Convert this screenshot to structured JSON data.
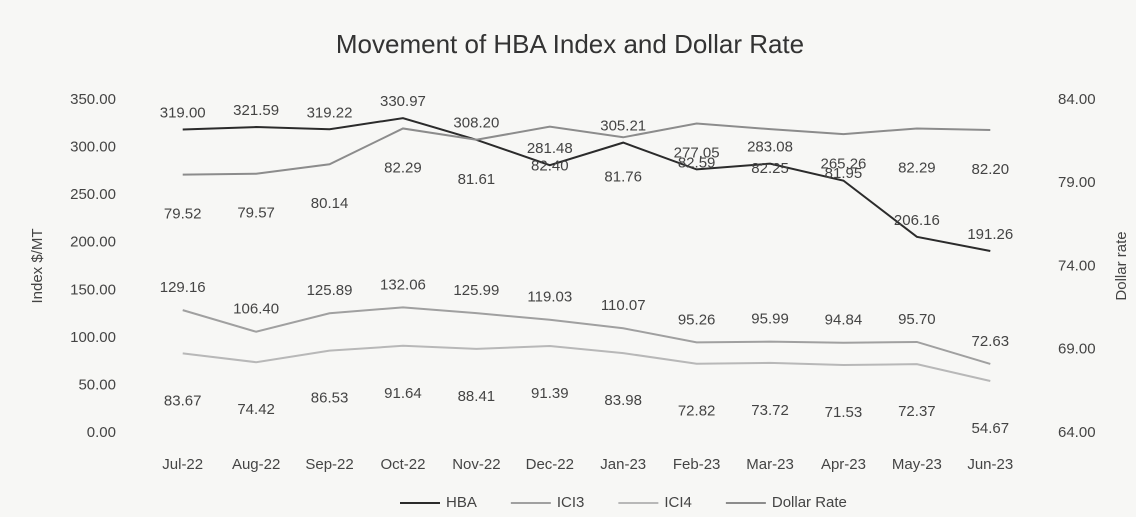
{
  "chart_data": {
    "type": "line",
    "title": "Movement of HBA Index and Dollar Rate",
    "y_label": "Index $/MT",
    "y2_label": "Dollar rate",
    "categories": [
      "Jul-22",
      "Aug-22",
      "Sep-22",
      "Oct-22",
      "Nov-22",
      "Dec-22",
      "Jan-23",
      "Feb-23",
      "Mar-23",
      "Apr-23",
      "May-23",
      "Jun-23"
    ],
    "series": [
      {
        "name": "HBA",
        "color": "#2b2b2b",
        "values": [
          319.0,
          321.59,
          319.22,
          330.97,
          308.2,
          281.48,
          305.21,
          277.05,
          283.08,
          265.26,
          206.16,
          191.26
        ],
        "value_labels": [
          "319.00",
          "321.59",
          "319.22",
          "330.97",
          "308.20",
          "281.48",
          "305.21",
          "277.05",
          "283.08",
          "265.26",
          "206.16",
          "191.26"
        ]
      },
      {
        "name": "ICI3",
        "color": "#a0a0a0",
        "values": [
          129.16,
          106.4,
          125.89,
          132.06,
          125.99,
          119.03,
          110.07,
          95.26,
          95.99,
          94.84,
          95.7,
          72.63
        ],
        "value_labels": [
          "129.16",
          "106.40",
          "125.89",
          "132.06",
          "125.99",
          "119.03",
          "110.07",
          "95.26",
          "95.99",
          "94.84",
          "95.70",
          "72.63"
        ]
      },
      {
        "name": "ICI4",
        "color": "#b8b8b8",
        "values": [
          83.67,
          74.42,
          86.53,
          91.64,
          88.41,
          91.39,
          83.98,
          72.82,
          73.72,
          71.53,
          72.37,
          54.67
        ],
        "value_labels": [
          "83.67",
          "74.42",
          "86.53",
          "91.64",
          "88.41",
          "91.39",
          "83.98",
          "72.82",
          "73.72",
          "71.53",
          "72.37",
          "54.67"
        ]
      },
      {
        "name": "Dollar Rate",
        "color": "#8c8c8c",
        "axis": "y2",
        "values": [
          79.52,
          79.57,
          80.14,
          82.29,
          81.61,
          82.4,
          81.76,
          82.59,
          82.25,
          81.95,
          82.29,
          82.2
        ],
        "value_labels": [
          "79.52",
          "79.57",
          "80.14",
          "82.29",
          "81.61",
          "82.40",
          "81.76",
          "82.59",
          "82.25",
          "81.95",
          "82.29",
          "82.20"
        ]
      }
    ],
    "ylim": [
      0,
      350
    ],
    "yticks": [
      {
        "value": 0,
        "label": "0.00"
      },
      {
        "value": 50,
        "label": "50.00"
      },
      {
        "value": 100,
        "label": "100.00"
      },
      {
        "value": 150,
        "label": "150.00"
      },
      {
        "value": 200,
        "label": "200.00"
      },
      {
        "value": 250,
        "label": "250.00"
      },
      {
        "value": 300,
        "label": "300.00"
      },
      {
        "value": 350,
        "label": "350.00"
      }
    ],
    "y2lim": [
      64,
      84
    ],
    "y2ticks": [
      {
        "value": 64,
        "label": "64.00"
      },
      {
        "value": 69,
        "label": "69.00"
      },
      {
        "value": 74,
        "label": "74.00"
      },
      {
        "value": 79,
        "label": "79.00"
      },
      {
        "value": 84,
        "label": "84.00"
      }
    ],
    "legend": "bottom"
  }
}
